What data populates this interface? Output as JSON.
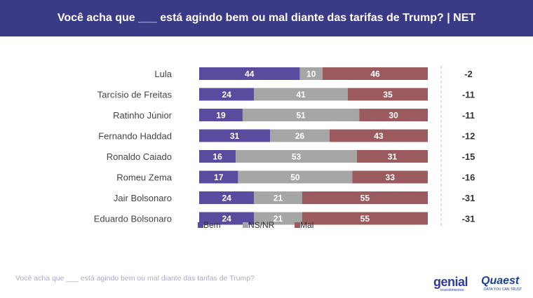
{
  "header": {
    "title": "Você acha que ___ está agindo bem ou mal diante das tarifas de Trump? | NET"
  },
  "chart_data": {
    "type": "bar",
    "stacked": true,
    "orientation": "horizontal",
    "categories": [
      "Lula",
      "Tarcísio de Freitas",
      "Ratinho Júnior",
      "Fernando Haddad",
      "Ronaldo Caiado",
      "Romeu Zema",
      "Jair Bolsonaro",
      "Eduardo Bolsonaro"
    ],
    "series": [
      {
        "name": "Bem",
        "color": "#5b4b9e",
        "values": [
          44,
          24,
          19,
          31,
          16,
          17,
          24,
          24
        ]
      },
      {
        "name": "NS/NR",
        "color": "#a6a6a6",
        "values": [
          10,
          41,
          51,
          26,
          53,
          50,
          21,
          21
        ]
      },
      {
        "name": "Mal",
        "color": "#9b5b5e",
        "values": [
          46,
          35,
          30,
          43,
          31,
          33,
          55,
          55
        ]
      }
    ],
    "net": [
      "-2",
      "-11",
      "-11",
      "-12",
      "-15",
      "-16",
      "-31",
      "-31"
    ],
    "xlim": [
      0,
      100
    ],
    "legend_position": "bottom-left"
  },
  "footer": {
    "question": "Você acha que ___ está agindo bem ou mal diante das tarifas de Trump?"
  },
  "logos": {
    "genial_main": "genial",
    "genial_sub": "investimentos",
    "quaest_main": "Quaest",
    "quaest_sub": "DATA YOU CAN TRUST"
  }
}
